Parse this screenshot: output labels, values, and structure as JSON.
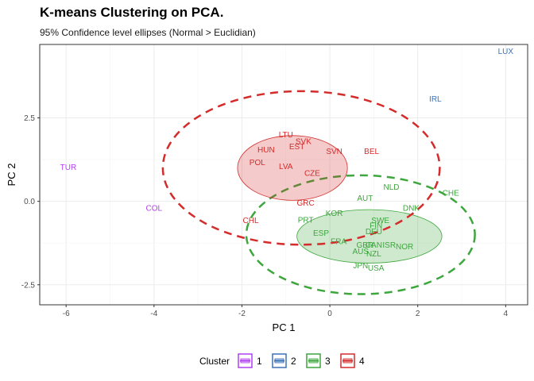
{
  "chart_data": {
    "type": "scatter",
    "title": "K-means Clustering on PCA.",
    "subtitle": "95% Confidence level ellipses (Normal > Euclidian)",
    "xlabel": "PC 1",
    "ylabel": "PC 2",
    "xlim": [
      -6.6,
      4.5
    ],
    "ylim": [
      -3.1,
      4.7
    ],
    "x_ticks": [
      -6,
      -4,
      -2,
      0,
      2,
      4
    ],
    "y_ticks": [
      -2.5,
      0.0,
      2.5
    ],
    "y_tick_labels": [
      "-2.5",
      "0.0",
      "2.5"
    ],
    "grid": true,
    "legend_title": "Cluster",
    "legend_position": "bottom",
    "clusters": [
      {
        "label": "1",
        "color": "#B140F0"
      },
      {
        "label": "2",
        "color": "#3A72B8"
      },
      {
        "label": "3",
        "color": "#3DA63D"
      },
      {
        "label": "4",
        "color": "#D42B2B"
      }
    ],
    "points": [
      {
        "label": "TUR",
        "x": -5.95,
        "y": 1.03,
        "cluster": "1"
      },
      {
        "label": "COL",
        "x": -4.0,
        "y": -0.2,
        "cluster": "1"
      },
      {
        "label": "LUX",
        "x": 4.0,
        "y": 4.5,
        "cluster": "2"
      },
      {
        "label": "IRL",
        "x": 2.4,
        "y": 3.07,
        "cluster": "2"
      },
      {
        "label": "NLD",
        "x": 1.4,
        "y": 0.43,
        "cluster": "3"
      },
      {
        "label": "CHE",
        "x": 2.75,
        "y": 0.25,
        "cluster": "3"
      },
      {
        "label": "AUT",
        "x": 0.8,
        "y": 0.1,
        "cluster": "3"
      },
      {
        "label": "DNK",
        "x": 1.85,
        "y": -0.2,
        "cluster": "3"
      },
      {
        "label": "KOR",
        "x": 0.1,
        "y": -0.35,
        "cluster": "3"
      },
      {
        "label": "PRT",
        "x": -0.55,
        "y": -0.55,
        "cluster": "3"
      },
      {
        "label": "SWE",
        "x": 1.15,
        "y": -0.57,
        "cluster": "3"
      },
      {
        "label": "FIN",
        "x": 1.05,
        "y": -0.72,
        "cluster": "3"
      },
      {
        "label": "DEU",
        "x": 1.0,
        "y": -0.9,
        "cluster": "3"
      },
      {
        "label": "ESP",
        "x": -0.2,
        "y": -0.95,
        "cluster": "3"
      },
      {
        "label": "FRA",
        "x": 0.2,
        "y": -1.2,
        "cluster": "3"
      },
      {
        "label": "GBR",
        "x": 0.8,
        "y": -1.3,
        "cluster": "3"
      },
      {
        "label": "CAN",
        "x": 1.0,
        "y": -1.3,
        "cluster": "3"
      },
      {
        "label": "ISR",
        "x": 1.35,
        "y": -1.3,
        "cluster": "3"
      },
      {
        "label": "NOR",
        "x": 1.7,
        "y": -1.35,
        "cluster": "3"
      },
      {
        "label": "AUS",
        "x": 0.7,
        "y": -1.5,
        "cluster": "3"
      },
      {
        "label": "NZL",
        "x": 1.0,
        "y": -1.57,
        "cluster": "3"
      },
      {
        "label": "JPN",
        "x": 0.7,
        "y": -1.92,
        "cluster": "3"
      },
      {
        "label": "USA",
        "x": 1.05,
        "y": -2.0,
        "cluster": "3"
      },
      {
        "label": "LTU",
        "x": -1.0,
        "y": 2.0,
        "cluster": "4"
      },
      {
        "label": "SVK",
        "x": -0.6,
        "y": 1.8,
        "cluster": "4"
      },
      {
        "label": "EST",
        "x": -0.75,
        "y": 1.65,
        "cluster": "4"
      },
      {
        "label": "HUN",
        "x": -1.45,
        "y": 1.55,
        "cluster": "4"
      },
      {
        "label": "SVN",
        "x": 0.1,
        "y": 1.5,
        "cluster": "4"
      },
      {
        "label": "BEL",
        "x": 0.95,
        "y": 1.5,
        "cluster": "4"
      },
      {
        "label": "POL",
        "x": -1.65,
        "y": 1.17,
        "cluster": "4"
      },
      {
        "label": "LVA",
        "x": -1.0,
        "y": 1.05,
        "cluster": "4"
      },
      {
        "label": "CZE",
        "x": -0.4,
        "y": 0.85,
        "cluster": "4"
      },
      {
        "label": "GRC",
        "x": -0.55,
        "y": -0.05,
        "cluster": "4"
      },
      {
        "label": "CHL",
        "x": -1.8,
        "y": -0.57,
        "cluster": "4"
      }
    ],
    "ellipses": [
      {
        "cluster": "3",
        "type": "confidence",
        "cx": 0.7,
        "cy": -1.0,
        "rx": 2.6,
        "ry": 1.78,
        "angle_deg": 0
      },
      {
        "cluster": "3",
        "type": "normal",
        "cx": 0.9,
        "cy": -1.05,
        "rx": 1.65,
        "ry": 0.8,
        "angle_deg": 0
      },
      {
        "cluster": "4",
        "type": "confidence",
        "cx": -0.65,
        "cy": 1.0,
        "rx": 3.15,
        "ry": 2.3,
        "angle_deg": 0
      },
      {
        "cluster": "4",
        "type": "normal",
        "cx": -0.85,
        "cy": 1.0,
        "rx": 1.25,
        "ry": 0.97,
        "angle_deg": 0
      }
    ]
  }
}
